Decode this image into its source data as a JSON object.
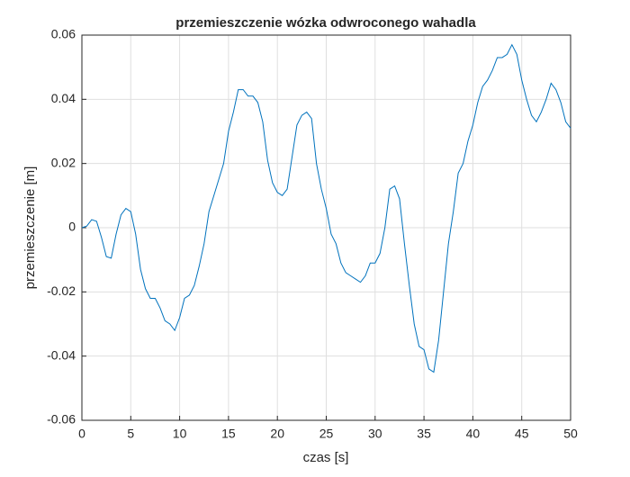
{
  "chart_data": {
    "type": "line",
    "title": "przemieszczenie wózka odwroconego wahadla",
    "xlabel": "czas [s]",
    "ylabel": "przemieszczenie [m]",
    "x": [
      0,
      0.5,
      1,
      1.5,
      2,
      2.5,
      3,
      3.5,
      4,
      4.5,
      5,
      5.5,
      6,
      6.5,
      7,
      7.5,
      8,
      8.5,
      9,
      9.5,
      10,
      10.5,
      11,
      11.5,
      12,
      12.5,
      13,
      13.5,
      14,
      14.5,
      15,
      15.5,
      16,
      16.5,
      17,
      17.5,
      18,
      18.5,
      19,
      19.5,
      20,
      20.5,
      21,
      21.5,
      22,
      22.5,
      23,
      23.5,
      24,
      24.5,
      25,
      25.5,
      26,
      26.5,
      27,
      27.5,
      28,
      28.5,
      29,
      29.5,
      30,
      30.5,
      31,
      31.5,
      32,
      32.5,
      33,
      33.5,
      34,
      34.5,
      35,
      35.5,
      36,
      36.5,
      37,
      37.5,
      38,
      38.5,
      39,
      39.5,
      40,
      40.5,
      41,
      41.5,
      42,
      42.5,
      43,
      43.5,
      44,
      44.5,
      45,
      45.5,
      46,
      46.5,
      47,
      47.5,
      48,
      48.5,
      49,
      49.5,
      50
    ],
    "series": [
      {
        "color": "#0072bd",
        "values": [
          0,
          0.0005,
          0.0025,
          0.002,
          -0.003,
          -0.009,
          -0.0095,
          -0.002,
          0.004,
          0.006,
          0.005,
          -0.002,
          -0.013,
          -0.019,
          -0.022,
          -0.022,
          -0.025,
          -0.029,
          -0.03,
          -0.032,
          -0.028,
          -0.022,
          -0.021,
          -0.018,
          -0.012,
          -0.005,
          0.005,
          0.01,
          0.015,
          0.02,
          0.03,
          0.036,
          0.043,
          0.043,
          0.041,
          0.041,
          0.039,
          0.033,
          0.021,
          0.014,
          0.011,
          0.01,
          0.012,
          0.022,
          0.032,
          0.035,
          0.036,
          0.034,
          0.02,
          0.012,
          0.006,
          -0.002,
          -0.005,
          -0.011,
          -0.014,
          -0.015,
          -0.016,
          -0.017,
          -0.015,
          -0.011,
          -0.011,
          -0.008,
          0,
          0.012,
          0.013,
          0.009,
          -0.005,
          -0.018,
          -0.03,
          -0.037,
          -0.038,
          -0.044,
          -0.045,
          -0.035,
          -0.02,
          -0.005,
          0.005,
          0.017,
          0.02,
          0.027,
          0.032,
          0.039,
          0.044,
          0.046,
          0.049,
          0.053,
          0.053,
          0.054,
          0.057,
          0.054,
          0.046,
          0.04,
          0.035,
          0.033,
          0.036,
          0.04,
          0.045,
          0.043,
          0.039,
          0.033,
          0.031
        ]
      }
    ],
    "xlim": [
      0,
      50
    ],
    "xticks": [
      0,
      5,
      10,
      15,
      20,
      25,
      30,
      35,
      40,
      45,
      50
    ],
    "ylim": [
      -0.06,
      0.06
    ],
    "yticks": [
      -0.06,
      -0.04,
      -0.02,
      0,
      0.02,
      0.04,
      0.06
    ],
    "grid": true
  }
}
